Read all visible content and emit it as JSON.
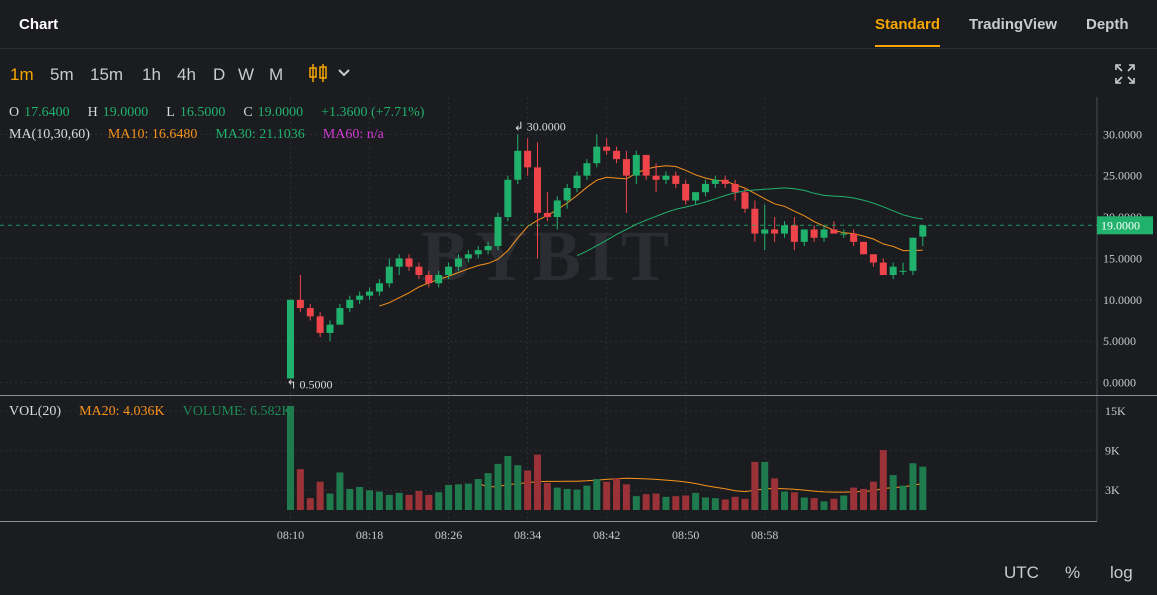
{
  "header": {
    "title": "Chart",
    "tabs": [
      {
        "label": "Standard",
        "active": true
      },
      {
        "label": "TradingView",
        "active": false
      },
      {
        "label": "Depth",
        "active": false
      }
    ]
  },
  "toolbar": {
    "intervals": [
      {
        "label": "1m",
        "active": true
      },
      {
        "label": "5m",
        "active": false
      },
      {
        "label": "15m",
        "active": false
      },
      {
        "label": "1h",
        "active": false
      },
      {
        "label": "4h",
        "active": false
      },
      {
        "label": "D",
        "active": false
      },
      {
        "label": "W",
        "active": false
      },
      {
        "label": "M",
        "active": false
      }
    ],
    "chart_type_icon": "candlestick-icon",
    "dropdown_icon": "chevron-down-icon",
    "fullscreen_icon": "expand-icon"
  },
  "legend": {
    "ohlc": {
      "o_label": "O",
      "o_value": "17.6400",
      "h_label": "H",
      "h_value": "19.0000",
      "l_label": "L",
      "l_value": "16.5000",
      "c_label": "C",
      "c_value": "19.0000",
      "change": "+1.3600 (+7.71%)"
    },
    "ma": {
      "label": "MA(10,30,60)",
      "ma10": "MA10: 16.6480",
      "ma30": "MA30: 21.1036",
      "ma60": "MA60: n/a"
    },
    "vol": {
      "label": "VOL(20)",
      "ma20": "MA20: 4.036K",
      "volume": "VOLUME: 6.582K"
    }
  },
  "watermark": "BYBIT",
  "footer": {
    "utc": "UTC",
    "percent": "%",
    "log": "log"
  },
  "colors": {
    "up": "#20b26c",
    "down": "#ef454a",
    "accent": "#f7a600",
    "ma10": "#f7931a",
    "ma30": "#20b26c",
    "ma60": "#d63ad6"
  },
  "chart_data": {
    "type": "candlestick",
    "price_axis": {
      "ticks": [
        "30.0000",
        "25.0000",
        "20.0000",
        "15.0000",
        "10.0000",
        "5.0000",
        "0.0000"
      ],
      "ylim": [
        -1.5,
        34.5
      ]
    },
    "volume_axis": {
      "ticks": [
        "15K",
        "9K",
        "3K"
      ],
      "ylim": [
        0,
        17000
      ]
    },
    "time_ticks": [
      "08:10",
      "08:18",
      "08:26",
      "08:34",
      "08:42",
      "08:50",
      "08:58"
    ],
    "last_price": "19.0000",
    "annotations": {
      "high": "30.0000",
      "low": "0.5000"
    },
    "candles": [
      {
        "o": 0.5,
        "h": 10,
        "l": 0.5,
        "c": 10,
        "v": 15800
      },
      {
        "o": 10,
        "h": 13,
        "l": 8.5,
        "c": 9,
        "v": 6200
      },
      {
        "o": 9,
        "h": 9.5,
        "l": 7.5,
        "c": 8,
        "v": 1800
      },
      {
        "o": 8,
        "h": 8.5,
        "l": 5.5,
        "c": 6,
        "v": 4300
      },
      {
        "o": 6,
        "h": 7.5,
        "l": 5,
        "c": 7,
        "v": 2500
      },
      {
        "o": 7,
        "h": 9.5,
        "l": 7,
        "c": 9,
        "v": 5700
      },
      {
        "o": 9,
        "h": 10.5,
        "l": 8.5,
        "c": 10,
        "v": 3200
      },
      {
        "o": 10,
        "h": 11,
        "l": 9.5,
        "c": 10.5,
        "v": 3500
      },
      {
        "o": 10.5,
        "h": 11.5,
        "l": 10,
        "c": 11,
        "v": 3000
      },
      {
        "o": 11,
        "h": 12.5,
        "l": 10.5,
        "c": 12,
        "v": 2800
      },
      {
        "o": 12,
        "h": 15,
        "l": 11.5,
        "c": 14,
        "v": 2300
      },
      {
        "o": 14,
        "h": 15.5,
        "l": 13,
        "c": 15,
        "v": 2600
      },
      {
        "o": 15,
        "h": 15.5,
        "l": 13.5,
        "c": 14,
        "v": 2300
      },
      {
        "o": 14,
        "h": 14.5,
        "l": 12.5,
        "c": 13,
        "v": 2900
      },
      {
        "o": 13,
        "h": 13.5,
        "l": 11.5,
        "c": 12,
        "v": 2300
      },
      {
        "o": 12,
        "h": 13.5,
        "l": 11.5,
        "c": 13,
        "v": 2700
      },
      {
        "o": 13,
        "h": 14.5,
        "l": 12.5,
        "c": 14,
        "v": 3800
      },
      {
        "o": 14,
        "h": 15.5,
        "l": 13.5,
        "c": 15,
        "v": 3900
      },
      {
        "o": 15,
        "h": 16,
        "l": 14.5,
        "c": 15.5,
        "v": 4000
      },
      {
        "o": 15.5,
        "h": 16.5,
        "l": 15,
        "c": 16,
        "v": 4700
      },
      {
        "o": 16,
        "h": 17,
        "l": 15.5,
        "c": 16.5,
        "v": 5600
      },
      {
        "o": 16.5,
        "h": 20.5,
        "l": 16,
        "c": 20,
        "v": 7000
      },
      {
        "o": 20,
        "h": 25,
        "l": 19.5,
        "c": 24.5,
        "v": 8200
      },
      {
        "o": 24.5,
        "h": 30,
        "l": 24,
        "c": 28,
        "v": 6800
      },
      {
        "o": 28,
        "h": 29.5,
        "l": 25,
        "c": 26,
        "v": 6000
      },
      {
        "o": 26,
        "h": 29,
        "l": 15,
        "c": 20.5,
        "v": 8400
      },
      {
        "o": 20.5,
        "h": 23,
        "l": 19.5,
        "c": 20,
        "v": 4100
      },
      {
        "o": 20,
        "h": 22.5,
        "l": 18.5,
        "c": 22,
        "v": 3400
      },
      {
        "o": 22,
        "h": 24,
        "l": 21,
        "c": 23.5,
        "v": 3200
      },
      {
        "o": 23.5,
        "h": 25.5,
        "l": 23,
        "c": 25,
        "v": 3100
      },
      {
        "o": 25,
        "h": 27,
        "l": 24.5,
        "c": 26.5,
        "v": 3700
      },
      {
        "o": 26.5,
        "h": 30,
        "l": 26,
        "c": 28.5,
        "v": 4700
      },
      {
        "o": 28.5,
        "h": 29.5,
        "l": 27.5,
        "c": 28,
        "v": 4300
      },
      {
        "o": 28,
        "h": 28.5,
        "l": 26.5,
        "c": 27,
        "v": 4800
      },
      {
        "o": 27,
        "h": 28,
        "l": 20.5,
        "c": 25,
        "v": 3900
      },
      {
        "o": 25,
        "h": 28,
        "l": 24,
        "c": 27.5,
        "v": 2100
      },
      {
        "o": 27.5,
        "h": 27.5,
        "l": 24.5,
        "c": 25,
        "v": 2400
      },
      {
        "o": 25,
        "h": 26.5,
        "l": 23,
        "c": 24.5,
        "v": 2500
      },
      {
        "o": 24.5,
        "h": 25.5,
        "l": 24,
        "c": 25,
        "v": 2000
      },
      {
        "o": 25,
        "h": 25.5,
        "l": 23.5,
        "c": 24,
        "v": 2100
      },
      {
        "o": 24,
        "h": 24.5,
        "l": 21.5,
        "c": 22,
        "v": 2200
      },
      {
        "o": 22,
        "h": 23,
        "l": 21.5,
        "c": 23,
        "v": 2600
      },
      {
        "o": 23,
        "h": 24.5,
        "l": 22.5,
        "c": 24,
        "v": 1900
      },
      {
        "o": 24,
        "h": 25,
        "l": 23.5,
        "c": 24.5,
        "v": 1800
      },
      {
        "o": 24.5,
        "h": 25,
        "l": 23.5,
        "c": 24,
        "v": 1600
      },
      {
        "o": 24,
        "h": 24.5,
        "l": 22,
        "c": 23,
        "v": 2000
      },
      {
        "o": 23,
        "h": 23.5,
        "l": 20.5,
        "c": 21,
        "v": 1700
      },
      {
        "o": 21,
        "h": 22,
        "l": 17,
        "c": 18,
        "v": 7300
      },
      {
        "o": 18,
        "h": 21.5,
        "l": 16,
        "c": 18.5,
        "v": 7300
      },
      {
        "o": 18.5,
        "h": 20,
        "l": 17,
        "c": 18,
        "v": 4800
      },
      {
        "o": 18,
        "h": 19.5,
        "l": 17.5,
        "c": 19,
        "v": 2800
      },
      {
        "o": 19,
        "h": 20,
        "l": 16,
        "c": 17,
        "v": 2700
      },
      {
        "o": 17,
        "h": 18.5,
        "l": 16.5,
        "c": 18.5,
        "v": 1900
      },
      {
        "o": 18.5,
        "h": 19,
        "l": 17,
        "c": 17.5,
        "v": 1800
      },
      {
        "o": 17.5,
        "h": 19,
        "l": 17,
        "c": 18.5,
        "v": 1300
      },
      {
        "o": 18.5,
        "h": 19.5,
        "l": 18,
        "c": 18,
        "v": 1700
      },
      {
        "o": 18,
        "h": 18.5,
        "l": 17.5,
        "c": 18,
        "v": 2200
      },
      {
        "o": 18,
        "h": 18.5,
        "l": 16.5,
        "c": 17,
        "v": 3400
      },
      {
        "o": 17,
        "h": 17,
        "l": 15.5,
        "c": 15.5,
        "v": 3200
      },
      {
        "o": 15.5,
        "h": 15.5,
        "l": 14,
        "c": 14.5,
        "v": 4300
      },
      {
        "o": 14.5,
        "h": 15,
        "l": 13,
        "c": 13,
        "v": 9100
      },
      {
        "o": 13,
        "h": 14.5,
        "l": 12.5,
        "c": 14,
        "v": 5300
      },
      {
        "o": 13.5,
        "h": 14.5,
        "l": 13,
        "c": 13.5,
        "v": 3700
      },
      {
        "o": 13.5,
        "h": 17.5,
        "l": 13,
        "c": 17.5,
        "v": 7100
      },
      {
        "o": 17.64,
        "h": 19,
        "l": 16.5,
        "c": 19,
        "v": 6582
      }
    ]
  }
}
